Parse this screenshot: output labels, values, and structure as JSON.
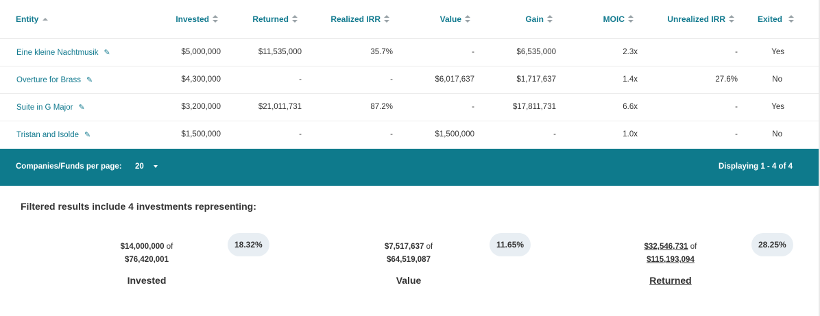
{
  "columns": [
    {
      "key": "entity",
      "label": "Entity"
    },
    {
      "key": "invested",
      "label": "Invested"
    },
    {
      "key": "returned",
      "label": "Returned"
    },
    {
      "key": "realized_irr",
      "label": "Realized IRR"
    },
    {
      "key": "value",
      "label": "Value"
    },
    {
      "key": "gain",
      "label": "Gain"
    },
    {
      "key": "moic",
      "label": "MOIC"
    },
    {
      "key": "unrealized_irr",
      "label": "Unrealized IRR"
    },
    {
      "key": "exited",
      "label": "Exited"
    }
  ],
  "rows": [
    {
      "entity": "Eine kleine Nachtmusik",
      "invested": "$5,000,000",
      "returned": "$11,535,000",
      "realized_irr": "35.7%",
      "value": "-",
      "gain": "$6,535,000",
      "moic": "2.3x",
      "unrealized_irr": "-",
      "exited": "Yes"
    },
    {
      "entity": "Overture for Brass",
      "invested": "$4,300,000",
      "returned": "-",
      "realized_irr": "-",
      "value": "$6,017,637",
      "gain": "$1,717,637",
      "moic": "1.4x",
      "unrealized_irr": "27.6%",
      "exited": "No"
    },
    {
      "entity": "Suite in G Major",
      "invested": "$3,200,000",
      "returned": "$21,011,731",
      "realized_irr": "87.2%",
      "value": "-",
      "gain": "$17,811,731",
      "moic": "6.6x",
      "unrealized_irr": "-",
      "exited": "Yes"
    },
    {
      "entity": "Tristan and Isolde",
      "invested": "$1,500,000",
      "returned": "-",
      "realized_irr": "-",
      "value": "$1,500,000",
      "gain": "-",
      "moic": "1.0x",
      "unrealized_irr": "-",
      "exited": "No"
    }
  ],
  "icons": {
    "edit": "pencil-icon",
    "sort": "sort-both-icon",
    "sort_asc": "sort-asc-icon",
    "dropdown": "caret-down-icon"
  },
  "pagination": {
    "per_page_label": "Companies/Funds per page:",
    "per_page_value": "20",
    "display_text": "Displaying 1 - 4 of 4"
  },
  "summary": {
    "title": "Filtered results include 4 investments representing:",
    "of_word": "of",
    "stats": [
      {
        "amount": "$14,000,000",
        "total": "$76,420,001",
        "percent": "18.32%",
        "label": "Invested"
      },
      {
        "amount": "$7,517,637",
        "total": "$64,519,087",
        "percent": "11.65%",
        "label": "Value"
      },
      {
        "amount": "$32,546,731",
        "total": "$115,193,094",
        "percent": "28.25%",
        "label": "Returned"
      }
    ]
  },
  "colors": {
    "accent": "#0e7a8c",
    "link": "#127a8f",
    "pill": "#e8eef3"
  }
}
